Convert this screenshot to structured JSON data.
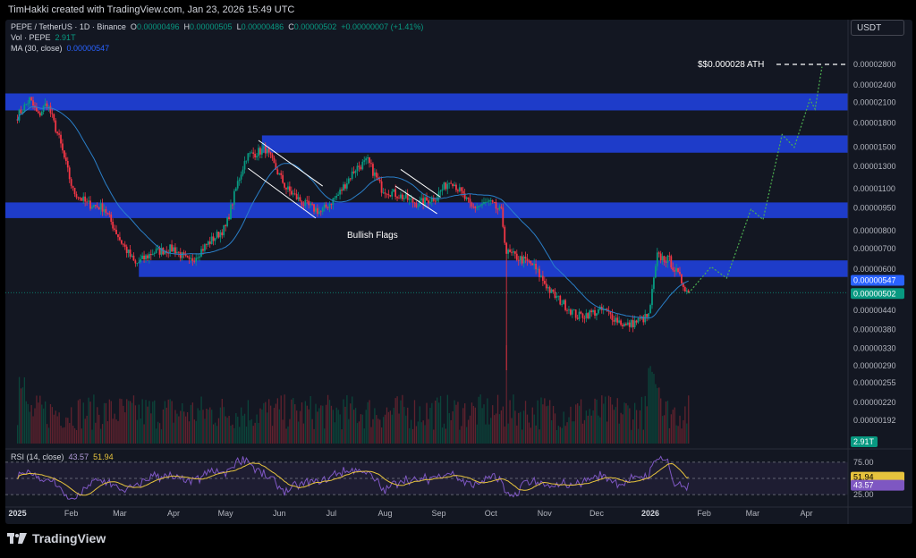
{
  "header": {
    "credit": "TimHakki created with TradingView.com, Jan 23, 2026 15:49 UTC"
  },
  "legend": {
    "symbol": "PEPE / TetherUS · 1D · Binance",
    "o_label": "O",
    "o_value": "0.00000496",
    "h_label": "H",
    "h_value": "0.00000505",
    "l_label": "L",
    "l_value": "0.00000486",
    "c_label": "C",
    "c_value": "0.00000502",
    "change": "+0.00000007 (+1.41%)",
    "vol_label": "Vol · PEPE",
    "vol_value": "2.91T",
    "ma_label": "MA (30, close)",
    "ma_value": "0.00000547",
    "rsi_label": "RSI (14, close)",
    "rsi_value": "43.57",
    "rsi_ma_value": "51.94"
  },
  "currency": "USDT",
  "footer": {
    "brand": "TradingView"
  },
  "colors": {
    "up": "#089981",
    "down": "#f23645",
    "zone": "#1f3fd6",
    "ma": "#2a7fc9",
    "forecast": "#4caf50",
    "rsi": "#7e57c2",
    "rsi_ma": "#e6c33d"
  },
  "chart_data": {
    "type": "candlestick",
    "y_scale": "log",
    "y_ticks": [
      "0.00002800",
      "0.00002400",
      "0.00002100",
      "0.00001800",
      "0.00001500",
      "0.00001300",
      "0.00001100",
      "0.00000950",
      "0.00000800",
      "0.00000700",
      "0.00000600",
      "0.00000440",
      "0.00000380",
      "0.00000330",
      "0.00000290",
      "0.00000255",
      "0.00000220",
      "0.00000192"
    ],
    "x_ticks": [
      "2025",
      "Feb",
      "Mar",
      "Apr",
      "May",
      "Jun",
      "Jul",
      "Aug",
      "Sep",
      "Oct",
      "Nov",
      "Dec",
      "2026",
      "Feb",
      "Mar",
      "Apr"
    ],
    "price_labels": {
      "ma": "0.00000547",
      "last": "0.00000502",
      "volume": "2.91T"
    },
    "zones": [
      {
        "low": 1.98e-05,
        "high": 2.25e-05
      },
      {
        "low": 1.44e-05,
        "high": 1.64e-05
      },
      {
        "low": 8.8e-06,
        "high": 9.9e-06
      },
      {
        "low": 5.65e-06,
        "high": 6.4e-06
      }
    ],
    "annotations": [
      {
        "text": "Bullish Flags"
      },
      {
        "text": "$$0.000028 ATH",
        "price": 2.8e-05
      }
    ],
    "price_path": [
      [
        "2025-01-01",
        1.9e-05
      ],
      [
        "2025-01-08",
        2.15e-05
      ],
      [
        "2025-01-13",
        1.9e-05
      ],
      [
        "2025-01-18",
        2.1e-05
      ],
      [
        "2025-01-25",
        1.6e-05
      ],
      [
        "2025-02-02",
        1.08e-05
      ],
      [
        "2025-02-10",
        9.8e-06
      ],
      [
        "2025-02-20",
        9.5e-06
      ],
      [
        "2025-03-01",
        7.5e-06
      ],
      [
        "2025-03-10",
        6.2e-06
      ],
      [
        "2025-03-20",
        6.8e-06
      ],
      [
        "2025-04-01",
        7e-06
      ],
      [
        "2025-04-10",
        6.3e-06
      ],
      [
        "2025-04-20",
        7.2e-06
      ],
      [
        "2025-05-01",
        8.2e-06
      ],
      [
        "2025-05-08",
        1.15e-05
      ],
      [
        "2025-05-13",
        1.4e-05
      ],
      [
        "2025-05-24",
        1.48e-05
      ],
      [
        "2025-06-05",
        1.1e-05
      ],
      [
        "2025-06-15",
        9.8e-06
      ],
      [
        "2025-06-25",
        9.2e-06
      ],
      [
        "2025-07-05",
        1.05e-05
      ],
      [
        "2025-07-15",
        1.28e-05
      ],
      [
        "2025-07-22",
        1.35e-05
      ],
      [
        "2025-07-30",
        1.1e-05
      ],
      [
        "2025-08-08",
        1.05e-05
      ],
      [
        "2025-08-20",
        9.8e-06
      ],
      [
        "2025-08-30",
        1.03e-05
      ],
      [
        "2025-09-08",
        1.18e-05
      ],
      [
        "2025-09-20",
        9.5e-06
      ],
      [
        "2025-09-30",
        9.9e-06
      ],
      [
        "2025-10-07",
        9.2e-06
      ],
      [
        "2025-10-10",
        6.8e-06
      ],
      [
        "2025-10-25",
        6.2e-06
      ],
      [
        "2025-11-05",
        5e-06
      ],
      [
        "2025-11-20",
        4.2e-06
      ],
      [
        "2025-12-05",
        4.4e-06
      ],
      [
        "2025-12-18",
        3.9e-06
      ],
      [
        "2025-12-31",
        4.2e-06
      ],
      [
        "2026-01-05",
        6.6e-06
      ],
      [
        "2026-01-12",
        6.4e-06
      ],
      [
        "2026-01-23",
        5e-06
      ]
    ],
    "forecast_path": [
      [
        "2026-01-23",
        5e-06
      ],
      [
        "2026-02-05",
        6.1e-06
      ],
      [
        "2026-02-14",
        5.6e-06
      ],
      [
        "2026-02-28",
        9.4e-06
      ],
      [
        "2026-03-07",
        8.7e-06
      ],
      [
        "2026-03-18",
        1.65e-05
      ],
      [
        "2026-03-25",
        1.5e-05
      ],
      [
        "2026-04-03",
        2.15e-05
      ],
      [
        "2026-04-06",
        2e-05
      ],
      [
        "2026-04-10",
        2.75e-05
      ]
    ],
    "rsi": {
      "upper": 75,
      "lower": 25,
      "last": 43.57,
      "ma_last": 51.94
    }
  }
}
